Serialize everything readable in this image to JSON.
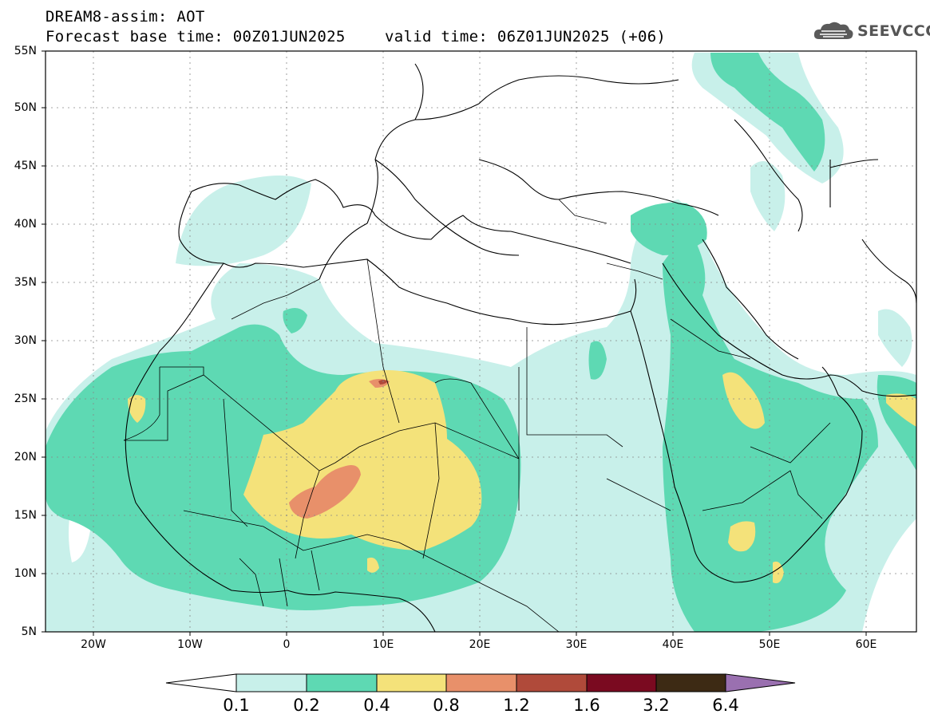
{
  "header": {
    "title": "DREAM8-assim: AOT",
    "forecast_line": "Forecast base time: 00Z01JUN2025",
    "valid_line": "valid time: 06Z01JUN2025 (+06)",
    "logo_text": "SEEVCCC"
  },
  "axes": {
    "lat_labels": [
      "55N",
      "50N",
      "45N",
      "40N",
      "35N",
      "30N",
      "25N",
      "20N",
      "15N",
      "10N",
      "5N"
    ],
    "lon_labels": [
      "20W",
      "10W",
      "0",
      "10E",
      "20E",
      "30E",
      "40E",
      "50E",
      "60E"
    ]
  },
  "colorbar": {
    "labels": [
      "0.1",
      "0.2",
      "0.4",
      "0.8",
      "1.2",
      "1.6",
      "3.2",
      "6.4"
    ],
    "colors": [
      "#ffffff",
      "#c8f0ea",
      "#5ed9b3",
      "#f4e27a",
      "#e8906a",
      "#b04a3a",
      "#7a0a20",
      "#3d2a14",
      "#9a70b0"
    ]
  },
  "colors": {
    "c01": "#c8f0ea",
    "c02": "#5ed9b3",
    "c04": "#f4e27a",
    "c08": "#e8906a",
    "c12": "#b04a3a"
  }
}
